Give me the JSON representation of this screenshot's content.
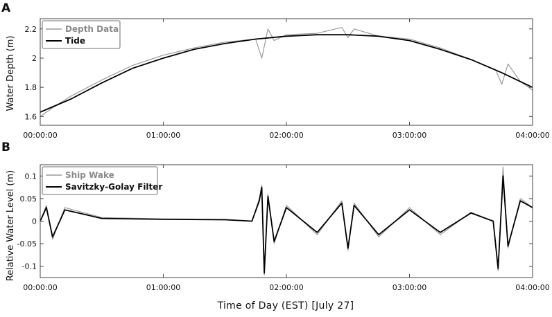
{
  "figure": {
    "xlabel": "Time of Day (EST) [July 27]"
  },
  "chart_data": [
    {
      "panel_label": "A",
      "type": "line",
      "xlabel": "",
      "ylabel": "Water Depth (m)",
      "x_ticks": [
        "00:00:00",
        "01:00:00",
        "02:00:00",
        "03:00:00",
        "04:00:00"
      ],
      "y_ticks": [
        1.6,
        1.8,
        2,
        2.2
      ],
      "xlim_hours": [
        0,
        4
      ],
      "ylim": [
        1.54,
        2.27
      ],
      "legend_position": "top-left",
      "grid": false,
      "series": [
        {
          "name": "Depth Data",
          "color": "#9a9a9a",
          "x_hours": [
            0,
            0.1,
            0.25,
            0.5,
            0.75,
            1.0,
            1.25,
            1.5,
            1.75,
            1.8,
            1.85,
            1.9,
            2.0,
            2.25,
            2.45,
            2.5,
            2.55,
            2.75,
            3.0,
            3.25,
            3.5,
            3.7,
            3.75,
            3.8,
            3.9,
            4.0
          ],
          "values": [
            1.6,
            1.66,
            1.74,
            1.85,
            1.95,
            2.02,
            2.07,
            2.11,
            2.13,
            2.0,
            2.2,
            2.12,
            2.16,
            2.17,
            2.21,
            2.14,
            2.2,
            2.15,
            2.13,
            2.07,
            1.99,
            1.92,
            1.82,
            1.96,
            1.84,
            1.78
          ]
        },
        {
          "name": "Tide",
          "color": "#000000",
          "x_hours": [
            0,
            0.25,
            0.5,
            0.75,
            1.0,
            1.25,
            1.5,
            1.75,
            2.0,
            2.25,
            2.5,
            2.75,
            3.0,
            3.25,
            3.5,
            3.75,
            4.0
          ],
          "values": [
            1.63,
            1.72,
            1.83,
            1.93,
            2.0,
            2.06,
            2.1,
            2.13,
            2.15,
            2.16,
            2.16,
            2.15,
            2.12,
            2.06,
            1.99,
            1.9,
            1.8
          ]
        }
      ]
    },
    {
      "panel_label": "B",
      "type": "line",
      "xlabel": "",
      "ylabel": "Relative Water Level (m)",
      "x_ticks": [
        "00:00:00",
        "01:00:00",
        "02:00:00",
        "03:00:00",
        "04:00:00"
      ],
      "y_ticks": [
        -0.1,
        -0.05,
        0,
        0.05,
        0.1
      ],
      "xlim_hours": [
        0,
        4
      ],
      "ylim": [
        -0.125,
        0.125
      ],
      "legend_position": "top-left",
      "grid": false,
      "series": [
        {
          "name": "Ship Wake",
          "color": "#9a9a9a",
          "x_hours": [
            0,
            0.05,
            0.1,
            0.2,
            0.5,
            1.0,
            1.5,
            1.72,
            1.78,
            1.8,
            1.82,
            1.85,
            1.9,
            2.0,
            2.25,
            2.45,
            2.5,
            2.55,
            2.75,
            3.0,
            3.25,
            3.5,
            3.68,
            3.72,
            3.76,
            3.8,
            3.9,
            4.0
          ],
          "values": [
            0.0,
            0.035,
            -0.04,
            0.03,
            0.008,
            0.005,
            0.004,
            0.0,
            0.05,
            0.08,
            -0.12,
            0.06,
            -0.05,
            0.035,
            -0.03,
            0.045,
            -0.065,
            0.04,
            -0.035,
            0.03,
            -0.03,
            0.02,
            0.0,
            -0.11,
            0.12,
            -0.06,
            0.05,
            0.03
          ]
        },
        {
          "name": "Savitzky-Golay Filter",
          "color": "#000000",
          "x_hours": [
            0,
            0.05,
            0.1,
            0.2,
            0.5,
            1.0,
            1.5,
            1.72,
            1.78,
            1.8,
            1.82,
            1.85,
            1.9,
            2.0,
            2.25,
            2.45,
            2.5,
            2.55,
            2.75,
            3.0,
            3.25,
            3.5,
            3.68,
            3.72,
            3.76,
            3.8,
            3.9,
            4.0
          ],
          "values": [
            0.0,
            0.03,
            -0.035,
            0.025,
            0.006,
            0.004,
            0.003,
            0.0,
            0.045,
            0.075,
            -0.115,
            0.055,
            -0.045,
            0.03,
            -0.025,
            0.04,
            -0.06,
            0.035,
            -0.03,
            0.025,
            -0.025,
            0.018,
            0.0,
            -0.105,
            0.1,
            -0.055,
            0.045,
            0.03
          ]
        }
      ]
    }
  ]
}
